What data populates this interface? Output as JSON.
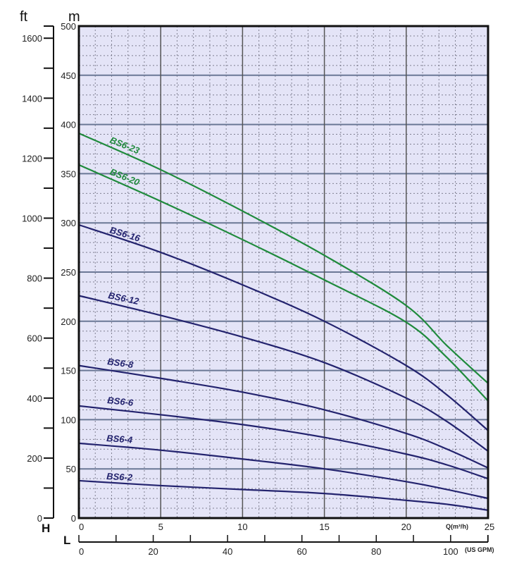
{
  "chart_data": {
    "type": "line",
    "title": "",
    "xlabel": "Q(m³/h)",
    "ylabel": "",
    "y_unit_left": "m",
    "y_unit_ft": "ft",
    "h_axis_letter": "H",
    "l_axis_letter": "L",
    "secondary_x_label": "(US GPM)",
    "xlim": [
      0,
      25
    ],
    "ylim": [
      0,
      500
    ],
    "x_ticks": [
      0,
      5,
      10,
      15,
      20,
      25
    ],
    "y_ticks": [
      0,
      50,
      100,
      150,
      200,
      250,
      300,
      350,
      400,
      450,
      500
    ],
    "ft_ticks": [
      0,
      200,
      400,
      600,
      800,
      1000,
      1200,
      1400,
      1600
    ],
    "gpm_ticks": [
      0,
      20,
      40,
      60,
      80,
      100
    ],
    "grid": true,
    "colors": {
      "background": "#e4e4f7",
      "green": "#1f8a3c",
      "blue": "#23236e"
    },
    "x": [
      0,
      5,
      10,
      15,
      20,
      22.5,
      25
    ],
    "series": [
      {
        "name": "BS6-23",
        "color": "green",
        "values": [
          391,
          354,
          312,
          267,
          216,
          175,
          137
        ]
      },
      {
        "name": "BS6-20",
        "color": "green",
        "values": [
          359,
          322,
          283,
          242,
          199,
          163,
          119
        ]
      },
      {
        "name": "BS6-16",
        "color": "blue",
        "values": [
          298,
          270,
          237,
          200,
          155,
          125,
          89
        ]
      },
      {
        "name": "BS6-12",
        "color": "blue",
        "values": [
          226,
          206,
          184,
          158,
          122,
          98,
          68
        ]
      },
      {
        "name": "BS6-8",
        "color": "blue",
        "values": [
          155,
          142,
          128,
          110,
          86,
          70,
          51
        ]
      },
      {
        "name": "BS6-6",
        "color": "blue",
        "values": [
          114,
          105,
          95,
          82,
          65,
          54,
          40
        ]
      },
      {
        "name": "BS6-4",
        "color": "blue",
        "values": [
          76,
          69,
          60,
          50,
          37,
          29,
          20
        ]
      },
      {
        "name": "BS6-2",
        "color": "blue",
        "values": [
          38,
          33,
          29,
          25,
          18,
          14,
          8
        ]
      }
    ]
  }
}
